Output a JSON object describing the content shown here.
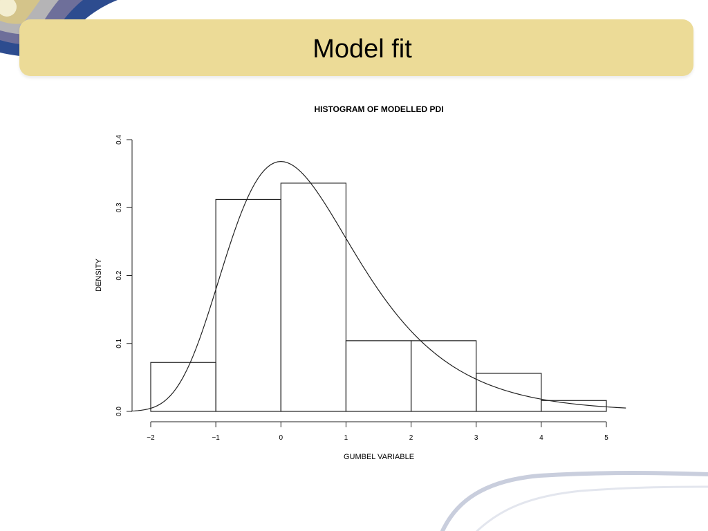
{
  "slide": {
    "title": "Model fit"
  },
  "chart_data": {
    "type": "bar",
    "title": "HISTOGRAM OF MODELLED PDI",
    "xlabel": "GUMBEL VARIABLE",
    "ylabel": "DENSITY",
    "xlim": [
      -2,
      5.3
    ],
    "ylim": [
      0,
      0.4
    ],
    "x_ticks": [
      "−2",
      "−1",
      "0",
      "1",
      "2",
      "3",
      "4",
      "5"
    ],
    "y_ticks": [
      "0.0",
      "0.1",
      "0.2",
      "0.3",
      "0.4"
    ],
    "bins": [
      {
        "from": -2,
        "to": -1,
        "density": 0.072
      },
      {
        "from": -1,
        "to": 0,
        "density": 0.312
      },
      {
        "from": 0,
        "to": 1,
        "density": 0.336
      },
      {
        "from": 1,
        "to": 2,
        "density": 0.104
      },
      {
        "from": 2,
        "to": 3,
        "density": 0.104
      },
      {
        "from": 3,
        "to": 4,
        "density": 0.056
      },
      {
        "from": 4,
        "to": 5,
        "density": 0.016
      }
    ],
    "curve": {
      "type": "gumbel-density",
      "location": 0,
      "scale": 1,
      "x_range": [
        -2.3,
        5.3
      ]
    },
    "grid": false,
    "legend": "none"
  }
}
